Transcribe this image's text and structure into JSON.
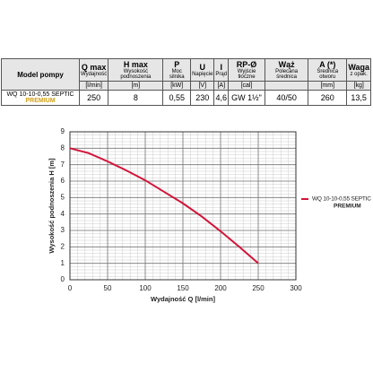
{
  "table": {
    "model_header": "Model pompy",
    "columns": [
      {
        "symbol": "Q max",
        "desc": "Wydajność",
        "unit": "[l/min]"
      },
      {
        "symbol": "H max",
        "desc": "Wysokość podnoszenia",
        "unit": "[m]"
      },
      {
        "symbol": "P",
        "desc": "Moc silnika",
        "unit": "[kW]"
      },
      {
        "symbol": "U",
        "desc": "Napięcie",
        "unit": "[V]"
      },
      {
        "symbol": "I",
        "desc": "Prąd",
        "unit": "[A]"
      },
      {
        "symbol": "RP-Ø",
        "desc": "Wyjście tłoczne",
        "unit": "[cal]"
      },
      {
        "symbol": "Wąż",
        "desc": "Polecana średnica"
      },
      {
        "symbol": "A (*)",
        "desc": "Średnica otworu",
        "unit": "[mm]"
      },
      {
        "symbol": "Waga",
        "desc": "z opak.",
        "unit": "[kg]"
      }
    ],
    "row": {
      "model": "WQ 10-10-0,55 SEPTIC",
      "badge": "PREMIUM",
      "cells": [
        "250",
        "8",
        "0,55",
        "230",
        "4,6",
        "GW 1½\"",
        "40/50",
        "260",
        "13,5"
      ]
    }
  },
  "chart_data": {
    "type": "line",
    "x_label": "Wydajność Q [l/min]",
    "y_label": "Wysokość podnoszenia H [m]",
    "x": [
      0,
      25,
      50,
      75,
      100,
      125,
      150,
      175,
      200,
      225,
      250
    ],
    "series": [
      {
        "name": "WQ 10-10-0,55 SEPTIC",
        "badge": "PREMIUM",
        "color": "#d2143a",
        "values": [
          8,
          7.7,
          7.2,
          6.65,
          6.05,
          5.35,
          4.65,
          3.85,
          2.95,
          2,
          1
        ]
      }
    ],
    "xlim": [
      0,
      300
    ],
    "xticks": [
      0,
      50,
      100,
      150,
      200,
      250,
      300
    ],
    "ylim": [
      0,
      9
    ],
    "yticks": [
      0,
      1,
      2,
      3,
      4,
      5,
      6,
      7,
      8,
      9
    ],
    "grid": true,
    "minor_grid": true,
    "badge_color": "#d4a017"
  }
}
